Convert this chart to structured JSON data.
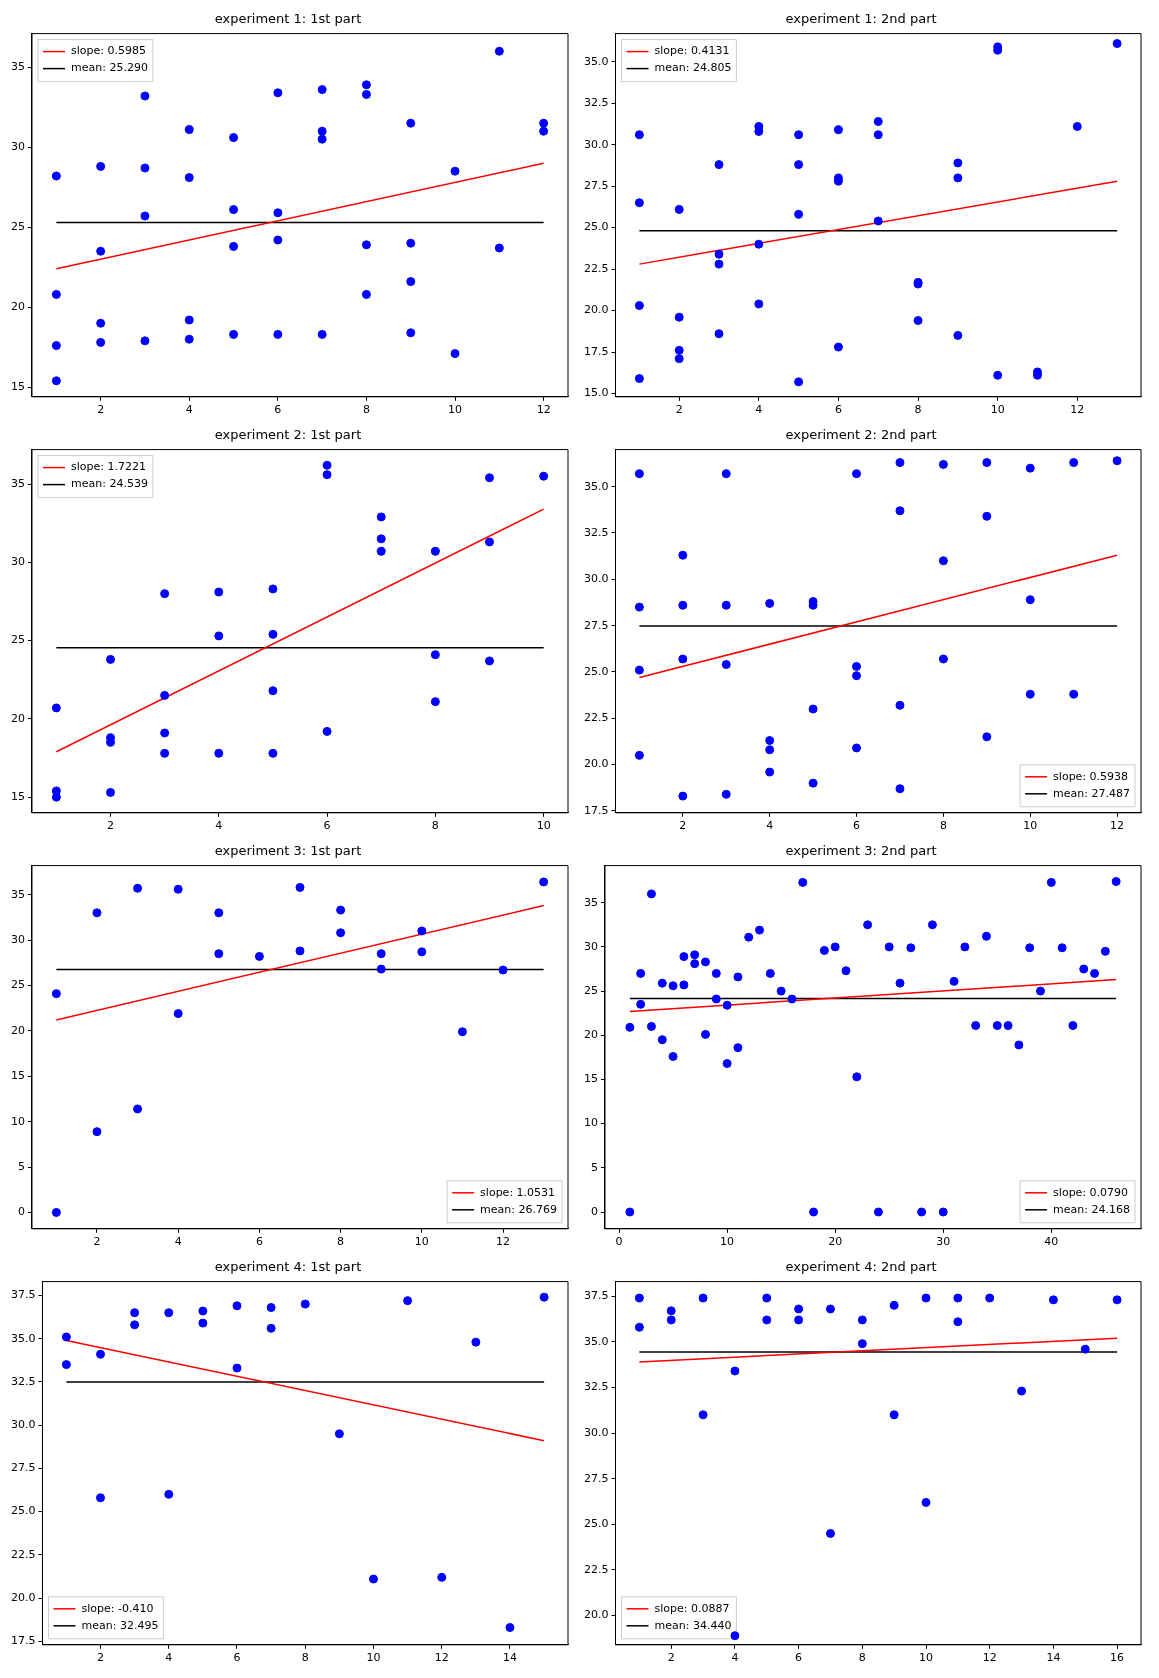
{
  "chart_data": [
    {
      "type": "scatter",
      "title": "experiment 1: 1st part",
      "grid": false,
      "legend": "top left",
      "xlim": [
        0.45,
        12.55
      ],
      "ylim": [
        14.4,
        37.1
      ],
      "xticks": [
        2,
        4,
        6,
        8,
        10,
        12
      ],
      "yticks": [
        15,
        20,
        25,
        30,
        35
      ],
      "series": [
        {
          "marker": "circle",
          "color": "#0000ff",
          "x": [
            1,
            1,
            1,
            1,
            2,
            2,
            2,
            2,
            3,
            3,
            3,
            3,
            4,
            4,
            4,
            4,
            5,
            5,
            5,
            5,
            6,
            6,
            6,
            6,
            7,
            7,
            7,
            7,
            8,
            8,
            8,
            8,
            9,
            9,
            9,
            9,
            10,
            10,
            11,
            11,
            12,
            12
          ],
          "values": [
            28.2,
            20.8,
            17.6,
            15.4,
            28.8,
            23.5,
            19.0,
            17.8,
            33.2,
            28.7,
            25.7,
            17.9,
            31.1,
            28.1,
            19.2,
            18.0,
            30.6,
            26.1,
            23.8,
            18.3,
            33.4,
            25.9,
            24.2,
            18.3,
            33.6,
            31.0,
            30.5,
            18.3,
            33.9,
            33.3,
            23.9,
            20.8,
            31.5,
            24.0,
            21.6,
            18.4,
            28.5,
            17.1,
            36.0,
            23.7,
            31.5,
            31.0
          ]
        },
        {
          "type": "line",
          "marker": "none",
          "name": "slope: 0.5985",
          "color": "#ff0000",
          "x": [
            1,
            12
          ],
          "values": [
            22.4,
            29.0
          ]
        },
        {
          "type": "line",
          "marker": "none",
          "name": "mean: 25.290",
          "color": "#000000",
          "x": [
            1,
            12
          ],
          "values": [
            25.29,
            25.29
          ]
        }
      ]
    },
    {
      "type": "scatter",
      "title": "experiment 1: 2nd part",
      "grid": false,
      "legend": "top left",
      "xlim": [
        0.4,
        13.6
      ],
      "ylim": [
        14.8,
        36.7
      ],
      "xticks": [
        2,
        4,
        6,
        8,
        10,
        12
      ],
      "yticks": [
        {
          "value": 15,
          "label": "15.0"
        },
        {
          "value": 17.5,
          "label": "17.5"
        },
        {
          "value": 20,
          "label": "20.0"
        },
        {
          "value": 22.5,
          "label": "22.5"
        },
        {
          "value": 25,
          "label": "25.0"
        },
        {
          "value": 27.5,
          "label": "27.5"
        },
        {
          "value": 30,
          "label": "30.0"
        },
        {
          "value": 32.5,
          "label": "32.5"
        },
        {
          "value": 35,
          "label": "35.0"
        }
      ],
      "series": [
        {
          "marker": "circle",
          "color": "#0000ff",
          "x": [
            1,
            1,
            1,
            1,
            2,
            2,
            2,
            2,
            3,
            3,
            3,
            3,
            4,
            4,
            4,
            4,
            5,
            5,
            5,
            5,
            6,
            6,
            6,
            6,
            7,
            7,
            7,
            8,
            8,
            8,
            9,
            9,
            9,
            10,
            10,
            10,
            11,
            11,
            12,
            13
          ],
          "values": [
            30.6,
            26.5,
            20.3,
            15.9,
            26.1,
            19.6,
            17.6,
            17.1,
            28.8,
            23.4,
            22.8,
            18.6,
            31.1,
            30.8,
            24.0,
            20.4,
            30.6,
            28.8,
            25.8,
            15.7,
            30.9,
            28.0,
            27.8,
            17.8,
            31.4,
            30.6,
            25.4,
            21.7,
            21.6,
            19.4,
            28.9,
            28.0,
            18.5,
            35.9,
            35.7,
            16.1,
            16.3,
            16.1,
            31.1,
            36.1
          ]
        },
        {
          "type": "line",
          "marker": "none",
          "name": "slope: 0.4131",
          "color": "#ff0000",
          "x": [
            1,
            13
          ],
          "values": [
            22.8,
            27.8
          ]
        },
        {
          "type": "line",
          "marker": "none",
          "name": "mean: 24.805",
          "color": "#000000",
          "x": [
            1,
            13
          ],
          "values": [
            24.805,
            24.805
          ]
        }
      ]
    },
    {
      "type": "scatter",
      "title": "experiment 2: 1st part",
      "grid": false,
      "legend": "top left",
      "xlim": [
        0.55,
        10.45
      ],
      "ylim": [
        14.0,
        37.2
      ],
      "xticks": [
        2,
        4,
        6,
        8,
        10
      ],
      "yticks": [
        15,
        20,
        25,
        30,
        35
      ],
      "series": [
        {
          "marker": "circle",
          "color": "#0000ff",
          "x": [
            1,
            1,
            1,
            2,
            2,
            2,
            2,
            3,
            3,
            3,
            3,
            4,
            4,
            4,
            5,
            5,
            5,
            5,
            6,
            6,
            6,
            7,
            7,
            7,
            8,
            8,
            8,
            9,
            9,
            9,
            10
          ],
          "values": [
            20.7,
            15.4,
            15.0,
            23.8,
            18.8,
            18.5,
            15.3,
            28.0,
            21.5,
            19.1,
            17.8,
            28.1,
            25.3,
            17.8,
            28.3,
            25.4,
            21.8,
            17.8,
            36.2,
            35.6,
            19.2,
            32.9,
            31.5,
            30.7,
            30.7,
            24.1,
            21.1,
            35.4,
            31.3,
            23.7,
            35.5
          ]
        },
        {
          "type": "line",
          "marker": "none",
          "name": "slope: 1.7221",
          "color": "#ff0000",
          "x": [
            1,
            10
          ],
          "values": [
            17.9,
            33.4
          ]
        },
        {
          "type": "line",
          "marker": "none",
          "name": "mean: 24.539",
          "color": "#000000",
          "x": [
            1,
            10
          ],
          "values": [
            24.539,
            24.539
          ]
        }
      ]
    },
    {
      "type": "scatter",
      "title": "experiment 2: 2nd part",
      "grid": false,
      "legend": "bottom right",
      "xlim": [
        0.45,
        12.55
      ],
      "ylim": [
        17.4,
        37.0
      ],
      "xticks": [
        2,
        4,
        6,
        8,
        10,
        12
      ],
      "yticks": [
        {
          "value": 17.5,
          "label": "17.5"
        },
        {
          "value": 20,
          "label": "20.0"
        },
        {
          "value": 22.5,
          "label": "22.5"
        },
        {
          "value": 25,
          "label": "25.0"
        },
        {
          "value": 27.5,
          "label": "27.5"
        },
        {
          "value": 30,
          "label": "30.0"
        },
        {
          "value": 32.5,
          "label": "32.5"
        },
        {
          "value": 35,
          "label": "35.0"
        }
      ],
      "series": [
        {
          "marker": "circle",
          "color": "#0000ff",
          "x": [
            1,
            1,
            1,
            1,
            2,
            2,
            2,
            2,
            3,
            3,
            3,
            3,
            4,
            4,
            4,
            4,
            5,
            5,
            5,
            5,
            6,
            6,
            6,
            6,
            7,
            7,
            7,
            7,
            8,
            8,
            8,
            9,
            9,
            9,
            10,
            10,
            10,
            11,
            11,
            12
          ],
          "values": [
            35.7,
            28.5,
            25.1,
            20.5,
            31.3,
            28.6,
            25.7,
            18.3,
            35.7,
            28.6,
            25.4,
            18.4,
            28.7,
            21.3,
            20.8,
            19.6,
            28.8,
            28.6,
            23.0,
            19.0,
            35.7,
            25.3,
            24.8,
            20.9,
            36.3,
            33.7,
            23.2,
            18.7,
            36.2,
            31.0,
            25.7,
            36.3,
            33.4,
            21.5,
            36.0,
            28.9,
            23.8,
            36.3,
            23.8,
            36.4
          ]
        },
        {
          "type": "line",
          "marker": "none",
          "name": "slope: 0.5938",
          "color": "#ff0000",
          "x": [
            1,
            12
          ],
          "values": [
            24.7,
            31.3
          ]
        },
        {
          "type": "line",
          "marker": "none",
          "name": "mean: 27.487",
          "color": "#000000",
          "x": [
            1,
            12
          ],
          "values": [
            27.487,
            27.487
          ]
        }
      ]
    },
    {
      "type": "scatter",
      "title": "experiment 3: 1st part",
      "grid": false,
      "legend": "bottom right",
      "xlim": [
        0.4,
        13.6
      ],
      "ylim": [
        -1.8,
        38.2
      ],
      "xticks": [
        2,
        4,
        6,
        8,
        10,
        12
      ],
      "yticks": [
        0,
        5,
        10,
        15,
        20,
        25,
        30,
        35
      ],
      "series": [
        {
          "marker": "circle",
          "color": "#0000ff",
          "x": [
            1,
            1,
            2,
            2,
            3,
            3,
            4,
            4,
            5,
            5,
            6,
            7,
            7,
            8,
            8,
            9,
            9,
            10,
            10,
            11,
            12,
            13
          ],
          "values": [
            24.1,
            0,
            33.0,
            8.9,
            35.7,
            11.4,
            35.6,
            21.9,
            33.0,
            28.5,
            28.2,
            35.8,
            28.8,
            33.3,
            30.8,
            28.5,
            26.8,
            31.0,
            28.7,
            19.9,
            26.7,
            36.4
          ]
        },
        {
          "type": "line",
          "marker": "none",
          "name": "slope: 1.0531",
          "color": "#ff0000",
          "x": [
            1,
            13
          ],
          "values": [
            21.2,
            33.8
          ]
        },
        {
          "type": "line",
          "marker": "none",
          "name": "mean: 26.769",
          "color": "#000000",
          "x": [
            1,
            13
          ],
          "values": [
            26.769,
            26.769
          ]
        }
      ]
    },
    {
      "type": "scatter",
      "title": "experiment 3: 2nd part",
      "grid": false,
      "legend": "bottom right",
      "xlim": [
        -1.3,
        48.3
      ],
      "ylim": [
        -1.9,
        39.2
      ],
      "xticks": [
        0,
        10,
        20,
        30,
        40
      ],
      "yticks": [
        0,
        5,
        10,
        15,
        20,
        25,
        30,
        35
      ],
      "series": [
        {
          "marker": "circle",
          "color": "#0000ff",
          "x": [
            1,
            1,
            2,
            2,
            3,
            3,
            4,
            4,
            5,
            5,
            6,
            6,
            7,
            7,
            8,
            8,
            9,
            9,
            10,
            10,
            11,
            11,
            12,
            13,
            14,
            15,
            16,
            17,
            18,
            19,
            20,
            21,
            22,
            23,
            24,
            25,
            26,
            27,
            28,
            29,
            30,
            31,
            32,
            33,
            34,
            35,
            36,
            37,
            38,
            39,
            40,
            41,
            42,
            43,
            44,
            45,
            46
          ],
          "values": [
            20.9,
            0,
            27.0,
            23.5,
            36.0,
            21.0,
            25.9,
            19.5,
            25.6,
            17.6,
            28.9,
            25.7,
            29.1,
            28.1,
            28.3,
            20.1,
            27.0,
            24.1,
            23.4,
            16.8,
            26.6,
            18.6,
            31.1,
            31.9,
            27.0,
            25.0,
            24.1,
            37.3,
            0,
            29.6,
            30.0,
            27.3,
            15.3,
            32.5,
            0,
            30.0,
            25.9,
            29.9,
            0,
            32.5,
            0,
            26.1,
            30.0,
            21.1,
            31.2,
            21.1,
            21.1,
            18.9,
            29.9,
            25.0,
            37.3,
            29.9,
            21.1,
            27.5,
            27.0,
            29.5,
            37.4
          ]
        },
        {
          "type": "line",
          "marker": "none",
          "name": "slope: 0.0790",
          "color": "#ff0000",
          "x": [
            1,
            46
          ],
          "values": [
            22.7,
            26.3
          ]
        },
        {
          "type": "line",
          "marker": "none",
          "name": "mean: 24.168",
          "color": "#000000",
          "x": [
            1,
            46
          ],
          "values": [
            24.168,
            24.168
          ]
        }
      ]
    },
    {
      "type": "scatter",
      "title": "experiment 4: 1st part",
      "grid": false,
      "legend": "bottom left",
      "xlim": [
        0.3,
        15.7
      ],
      "ylim": [
        17.3,
        38.3
      ],
      "xticks": [
        2,
        4,
        6,
        8,
        10,
        12,
        14
      ],
      "yticks": [
        {
          "value": 17.5,
          "label": "17.5"
        },
        {
          "value": 20,
          "label": "20.0"
        },
        {
          "value": 22.5,
          "label": "22.5"
        },
        {
          "value": 25,
          "label": "25.0"
        },
        {
          "value": 27.5,
          "label": "27.5"
        },
        {
          "value": 30,
          "label": "30.0"
        },
        {
          "value": 32.5,
          "label": "32.5"
        },
        {
          "value": 35,
          "label": "35.0"
        },
        {
          "value": 37.5,
          "label": "37.5"
        }
      ],
      "series": [
        {
          "marker": "circle",
          "color": "#0000ff",
          "x": [
            1,
            1,
            2,
            2,
            3,
            3,
            4,
            4,
            5,
            5,
            6,
            6,
            7,
            7,
            8,
            9,
            10,
            11,
            12,
            13,
            14,
            15
          ],
          "values": [
            35.1,
            33.5,
            34.1,
            25.8,
            36.5,
            35.8,
            36.5,
            26.0,
            36.6,
            35.9,
            36.9,
            33.3,
            36.8,
            35.6,
            37.0,
            29.5,
            21.1,
            37.2,
            21.2,
            34.8,
            18.3,
            37.4
          ]
        },
        {
          "type": "line",
          "marker": "none",
          "name": "slope: -0.410",
          "color": "#ff0000",
          "x": [
            1,
            15
          ],
          "values": [
            34.9,
            29.1
          ]
        },
        {
          "type": "line",
          "marker": "none",
          "name": "mean: 32.495",
          "color": "#000000",
          "x": [
            1,
            15
          ],
          "values": [
            32.495,
            32.495
          ]
        }
      ]
    },
    {
      "type": "scatter",
      "title": "experiment 4: 2nd part",
      "grid": false,
      "legend": "bottom left",
      "xlim": [
        0.25,
        16.75
      ],
      "ylim": [
        18.4,
        38.3
      ],
      "xticks": [
        2,
        4,
        6,
        8,
        10,
        12,
        14,
        16
      ],
      "yticks": [
        {
          "value": 20,
          "label": "20.0"
        },
        {
          "value": 22.5,
          "label": "22.5"
        },
        {
          "value": 25,
          "label": "25.0"
        },
        {
          "value": 27.5,
          "label": "27.5"
        },
        {
          "value": 30,
          "label": "30.0"
        },
        {
          "value": 32.5,
          "label": "32.5"
        },
        {
          "value": 35,
          "label": "35.0"
        },
        {
          "value": 37.5,
          "label": "37.5"
        }
      ],
      "series": [
        {
          "marker": "circle",
          "color": "#0000ff",
          "x": [
            1,
            1,
            2,
            2,
            3,
            3,
            4,
            4,
            5,
            5,
            6,
            6,
            7,
            7,
            8,
            8,
            9,
            9,
            10,
            10,
            11,
            11,
            12,
            13,
            14,
            15,
            16
          ],
          "values": [
            37.4,
            35.8,
            36.7,
            36.2,
            37.4,
            31.0,
            33.4,
            18.9,
            37.4,
            36.2,
            36.8,
            36.2,
            36.8,
            24.5,
            36.2,
            34.9,
            37.0,
            31.0,
            37.4,
            26.2,
            37.4,
            36.1,
            37.4,
            32.3,
            37.3,
            34.6,
            37.3
          ]
        },
        {
          "type": "line",
          "marker": "none",
          "name": "slope: 0.0887",
          "color": "#ff0000",
          "x": [
            1,
            16
          ],
          "values": [
            33.9,
            35.2
          ]
        },
        {
          "type": "line",
          "marker": "none",
          "name": "mean: 34.440",
          "color": "#000000",
          "x": [
            1,
            16
          ],
          "values": [
            34.44,
            34.44
          ]
        }
      ]
    }
  ]
}
